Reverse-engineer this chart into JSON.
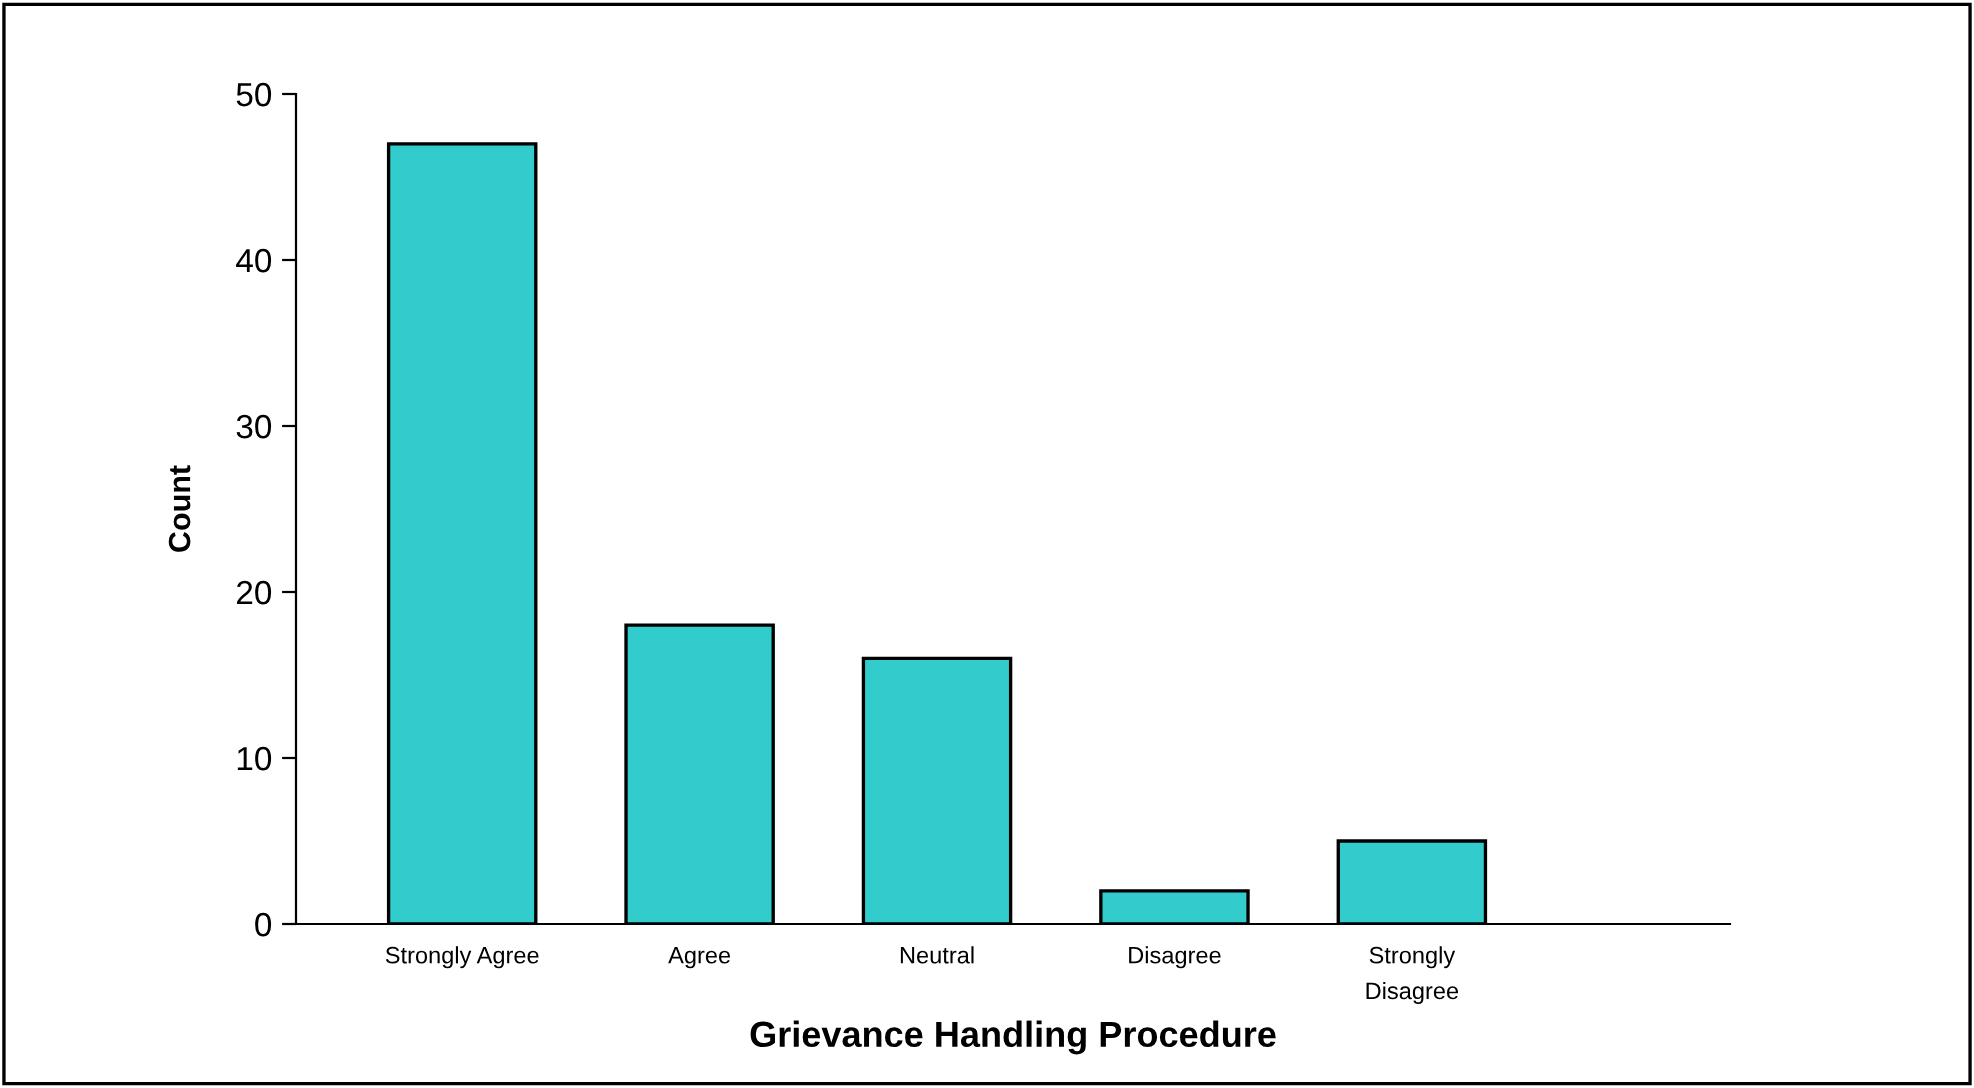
{
  "chart_data": {
    "type": "bar",
    "xlabel": "Grievance Handling Procedure",
    "ylabel": "Count",
    "categories": [
      "Strongly Agree",
      "Agree",
      "Neutral",
      "Disagree",
      "Strongly\nDisagree"
    ],
    "values": [
      47,
      18,
      16,
      2,
      5
    ],
    "color": "#33cccc",
    "ylim": [
      0,
      50
    ],
    "yticks": [
      0,
      10,
      20,
      30,
      40,
      50
    ],
    "grid": false,
    "legend": false
  }
}
